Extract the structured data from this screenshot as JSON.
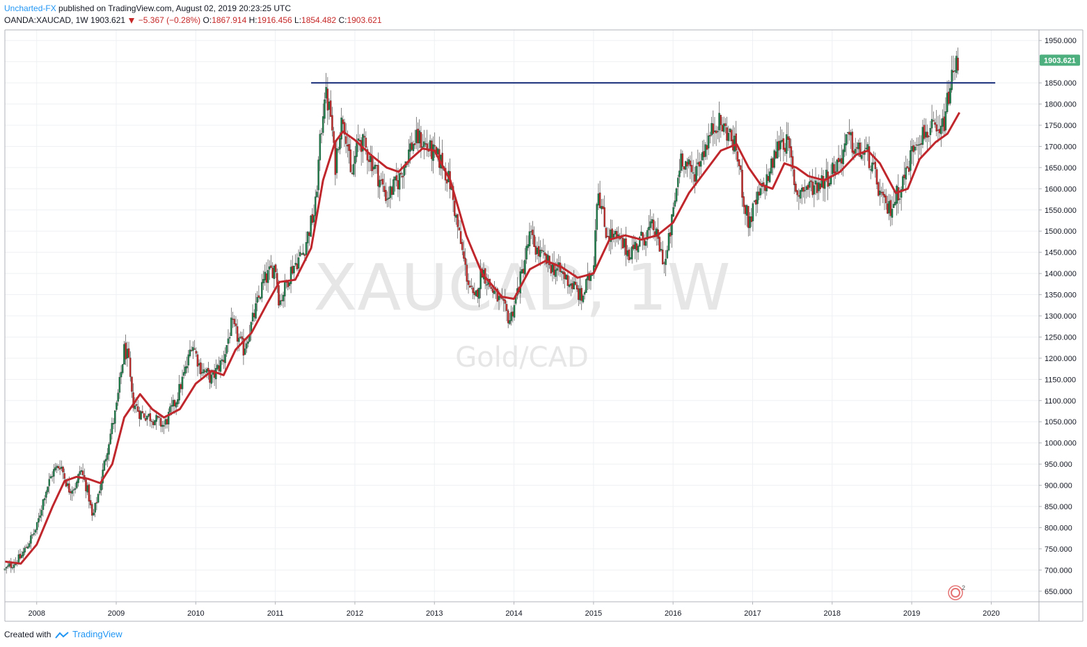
{
  "header": {
    "author": "Uncharted-FX",
    "published_text": "published on TradingView.com, August 02, 2019 20:23:25 UTC"
  },
  "symbol_bar": {
    "symbol": "OANDA:XAUCAD, 1W",
    "last": "1903.621",
    "change": "−5.367 (−0.28%)",
    "o_label": "O:",
    "o_value": "1867.914",
    "h_label": "H:",
    "h_value": "1916.456",
    "l_label": "L:",
    "l_value": "1854.482",
    "c_label": "C:",
    "c_value": "1903.621"
  },
  "watermark": {
    "symbol": "XAUCAD, 1W",
    "description": "Gold/CAD"
  },
  "footer": {
    "created_with": "Created with",
    "brand": "TradingView"
  },
  "price_label": "1903.621",
  "colors": {
    "up": "#1b7f4a",
    "down": "#c62828",
    "ma": "#c0272d",
    "resistance": "#1a2f7a",
    "price_label_bg": "#4caf7d"
  },
  "chart_data": {
    "type": "candlestick",
    "timeframe": "1W",
    "x_ticks": [
      "2008",
      "2009",
      "2010",
      "2011",
      "2012",
      "2013",
      "2014",
      "2015",
      "2016",
      "2017",
      "2018",
      "2019",
      "2020"
    ],
    "y_ticks": [
      "650.000",
      "700.000",
      "750.000",
      "800.000",
      "850.000",
      "900.000",
      "950.000",
      "1000.000",
      "1050.000",
      "1100.000",
      "1150.000",
      "1200.000",
      "1250.000",
      "1300.000",
      "1350.000",
      "1400.000",
      "1450.000",
      "1500.000",
      "1550.000",
      "1600.000",
      "1650.000",
      "1700.000",
      "1750.000",
      "1800.000",
      "1850.000",
      "1900.000",
      "1950.000"
    ],
    "ylim": [
      625,
      1975
    ],
    "xlim": [
      2007.6,
      2020.6
    ],
    "grid": true,
    "close_path": [
      [
        2007.6,
        700
      ],
      [
        2007.8,
        730
      ],
      [
        2008.0,
        800
      ],
      [
        2008.1,
        880
      ],
      [
        2008.2,
        930
      ],
      [
        2008.3,
        950
      ],
      [
        2008.4,
        890
      ],
      [
        2008.5,
        900
      ],
      [
        2008.55,
        940
      ],
      [
        2008.65,
        880
      ],
      [
        2008.7,
        820
      ],
      [
        2008.8,
        900
      ],
      [
        2008.9,
        1000
      ],
      [
        2009.0,
        1080
      ],
      [
        2009.1,
        1220
      ],
      [
        2009.15,
        1200
      ],
      [
        2009.2,
        1100
      ],
      [
        2009.3,
        1070
      ],
      [
        2009.45,
        1060
      ],
      [
        2009.6,
        1040
      ],
      [
        2009.75,
        1100
      ],
      [
        2009.9,
        1190
      ],
      [
        2009.95,
        1240
      ],
      [
        2010.05,
        1180
      ],
      [
        2010.2,
        1150
      ],
      [
        2010.35,
        1200
      ],
      [
        2010.45,
        1280
      ],
      [
        2010.6,
        1220
      ],
      [
        2010.7,
        1280
      ],
      [
        2010.85,
        1380
      ],
      [
        2011.0,
        1420
      ],
      [
        2011.05,
        1330
      ],
      [
        2011.2,
        1410
      ],
      [
        2011.35,
        1450
      ],
      [
        2011.45,
        1520
      ],
      [
        2011.5,
        1550
      ],
      [
        2011.55,
        1680
      ],
      [
        2011.62,
        1830
      ],
      [
        2011.7,
        1770
      ],
      [
        2011.75,
        1650
      ],
      [
        2011.8,
        1730
      ],
      [
        2011.85,
        1770
      ],
      [
        2011.9,
        1720
      ],
      [
        2011.95,
        1620
      ],
      [
        2012.05,
        1720
      ],
      [
        2012.15,
        1690
      ],
      [
        2012.25,
        1650
      ],
      [
        2012.4,
        1580
      ],
      [
        2012.55,
        1620
      ],
      [
        2012.7,
        1700
      ],
      [
        2012.8,
        1720
      ],
      [
        2012.95,
        1690
      ],
      [
        2013.1,
        1660
      ],
      [
        2013.2,
        1610
      ],
      [
        2013.3,
        1500
      ],
      [
        2013.4,
        1400
      ],
      [
        2013.5,
        1330
      ],
      [
        2013.6,
        1410
      ],
      [
        2013.7,
        1370
      ],
      [
        2013.8,
        1340
      ],
      [
        2013.95,
        1290
      ],
      [
        2014.1,
        1400
      ],
      [
        2014.2,
        1490
      ],
      [
        2014.3,
        1450
      ],
      [
        2014.45,
        1420
      ],
      [
        2014.6,
        1400
      ],
      [
        2014.75,
        1370
      ],
      [
        2014.85,
        1340
      ],
      [
        2015.0,
        1420
      ],
      [
        2015.05,
        1610
      ],
      [
        2015.15,
        1500
      ],
      [
        2015.3,
        1480
      ],
      [
        2015.45,
        1450
      ],
      [
        2015.6,
        1480
      ],
      [
        2015.75,
        1510
      ],
      [
        2015.9,
        1420
      ],
      [
        2016.0,
        1540
      ],
      [
        2016.1,
        1680
      ],
      [
        2016.25,
        1630
      ],
      [
        2016.4,
        1700
      ],
      [
        2016.55,
        1760
      ],
      [
        2016.7,
        1730
      ],
      [
        2016.8,
        1690
      ],
      [
        2016.9,
        1560
      ],
      [
        2016.95,
        1520
      ],
      [
        2017.05,
        1570
      ],
      [
        2017.2,
        1630
      ],
      [
        2017.35,
        1720
      ],
      [
        2017.45,
        1700
      ],
      [
        2017.55,
        1590
      ],
      [
        2017.65,
        1600
      ],
      [
        2017.8,
        1610
      ],
      [
        2017.95,
        1630
      ],
      [
        2018.1,
        1670
      ],
      [
        2018.2,
        1720
      ],
      [
        2018.3,
        1690
      ],
      [
        2018.45,
        1680
      ],
      [
        2018.55,
        1620
      ],
      [
        2018.65,
        1560
      ],
      [
        2018.72,
        1550
      ],
      [
        2018.85,
        1600
      ],
      [
        2018.95,
        1650
      ],
      [
        2019.05,
        1720
      ],
      [
        2019.15,
        1730
      ],
      [
        2019.25,
        1740
      ],
      [
        2019.35,
        1720
      ],
      [
        2019.42,
        1770
      ],
      [
        2019.48,
        1840
      ],
      [
        2019.52,
        1870
      ],
      [
        2019.55,
        1890
      ],
      [
        2019.59,
        1903.621
      ]
    ],
    "moving_average": [
      [
        2007.6,
        720
      ],
      [
        2007.8,
        715
      ],
      [
        2008.0,
        760
      ],
      [
        2008.2,
        850
      ],
      [
        2008.35,
        910
      ],
      [
        2008.5,
        920
      ],
      [
        2008.65,
        915
      ],
      [
        2008.8,
        905
      ],
      [
        2008.95,
        950
      ],
      [
        2009.1,
        1060
      ],
      [
        2009.3,
        1115
      ],
      [
        2009.45,
        1080
      ],
      [
        2009.6,
        1060
      ],
      [
        2009.8,
        1080
      ],
      [
        2010.0,
        1140
      ],
      [
        2010.2,
        1170
      ],
      [
        2010.35,
        1160
      ],
      [
        2010.5,
        1220
      ],
      [
        2010.7,
        1260
      ],
      [
        2010.9,
        1330
      ],
      [
        2011.05,
        1380
      ],
      [
        2011.25,
        1385
      ],
      [
        2011.45,
        1460
      ],
      [
        2011.6,
        1620
      ],
      [
        2011.75,
        1710
      ],
      [
        2011.85,
        1735
      ],
      [
        2012.0,
        1715
      ],
      [
        2012.2,
        1680
      ],
      [
        2012.4,
        1650
      ],
      [
        2012.55,
        1640
      ],
      [
        2012.7,
        1670
      ],
      [
        2012.85,
        1695
      ],
      [
        2013.0,
        1690
      ],
      [
        2013.2,
        1620
      ],
      [
        2013.4,
        1490
      ],
      [
        2013.6,
        1400
      ],
      [
        2013.85,
        1345
      ],
      [
        2014.0,
        1340
      ],
      [
        2014.2,
        1410
      ],
      [
        2014.4,
        1430
      ],
      [
        2014.6,
        1415
      ],
      [
        2014.8,
        1390
      ],
      [
        2015.0,
        1400
      ],
      [
        2015.2,
        1480
      ],
      [
        2015.4,
        1490
      ],
      [
        2015.6,
        1480
      ],
      [
        2015.8,
        1490
      ],
      [
        2016.0,
        1520
      ],
      [
        2016.2,
        1590
      ],
      [
        2016.4,
        1640
      ],
      [
        2016.6,
        1690
      ],
      [
        2016.8,
        1705
      ],
      [
        2016.95,
        1650
      ],
      [
        2017.1,
        1610
      ],
      [
        2017.25,
        1600
      ],
      [
        2017.4,
        1660
      ],
      [
        2017.55,
        1650
      ],
      [
        2017.7,
        1630
      ],
      [
        2017.9,
        1620
      ],
      [
        2018.1,
        1640
      ],
      [
        2018.3,
        1680
      ],
      [
        2018.45,
        1690
      ],
      [
        2018.6,
        1660
      ],
      [
        2018.8,
        1590
      ],
      [
        2018.95,
        1600
      ],
      [
        2019.1,
        1670
      ],
      [
        2019.3,
        1710
      ],
      [
        2019.45,
        1730
      ],
      [
        2019.6,
        1780
      ]
    ],
    "resistance_level": 1850,
    "resistance_x_range": [
      2011.45,
      2020.05
    ],
    "last_price": 1903.621
  }
}
